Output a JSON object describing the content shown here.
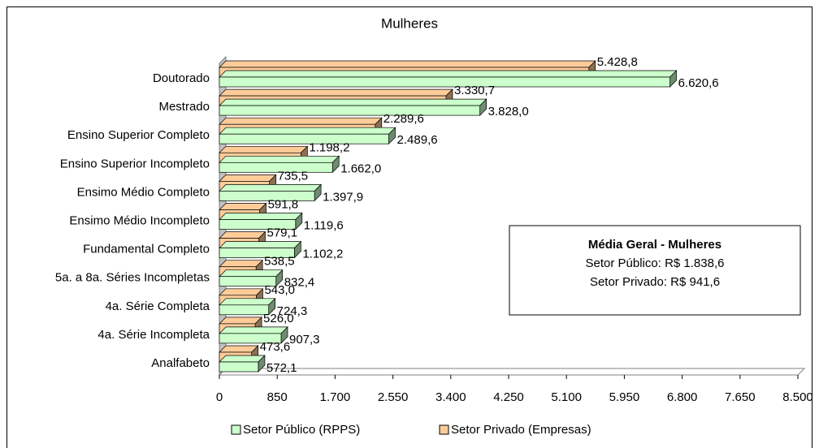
{
  "chart_data": {
    "type": "bar3d_horizontal",
    "title": "Mulheres",
    "categories": [
      "Doutorado",
      "Mestrado",
      "Ensino Superior Completo",
      "Ensino Superior Incompleto",
      "Ensimo Médio Completo",
      "Ensimo Médio Incompleto",
      "Fundamental Completo",
      "5a. a 8a. Séries Incompletas",
      "4a. Série Completa",
      "4a. Série Incompleta",
      "Analfabeto"
    ],
    "series": [
      {
        "name": "Setor Público (RPPS)",
        "color": "#ccffcc",
        "values": [
          6620.6,
          3828.0,
          2489.6,
          1662.0,
          1397.9,
          1119.6,
          1102.2,
          832.4,
          724.3,
          907.3,
          572.1
        ],
        "value_labels": [
          "6.620,6",
          "3.828,0",
          "2.489,6",
          "1.662,0",
          "1.397,9",
          "1.119,6",
          "1.102,2",
          "832,4",
          "724,3",
          "907,3",
          "572,1"
        ]
      },
      {
        "name": "Setor Privado (Empresas)",
        "color": "#ffcc99",
        "values": [
          5428.8,
          3330.7,
          2289.6,
          1198.2,
          735.5,
          591.8,
          579.1,
          538.5,
          543.0,
          526.0,
          473.6
        ],
        "value_labels": [
          "5.428,8",
          "3.330,7",
          "2.289,6",
          "1.198,2",
          "735,5",
          "591,8",
          "579,1",
          "538,5",
          "543,0",
          "526,0",
          "473,6"
        ]
      }
    ],
    "xlim": [
      0,
      8500
    ],
    "xticks": [
      0,
      850,
      {
        "value": 1700,
        "label": "1.700"
      },
      {
        "value": 2550,
        "label": "2.550"
      },
      {
        "value": 3400,
        "label": "3.400"
      },
      {
        "value": 4250,
        "label": "4.250"
      },
      {
        "value": 5100,
        "label": "5.100"
      },
      {
        "value": 5950,
        "label": "5.950"
      },
      {
        "value": 6800,
        "label": "6.800"
      },
      {
        "value": 7650,
        "label": "7.650"
      },
      {
        "value": 8500,
        "label": "8.500"
      }
    ],
    "legend": "bottom",
    "annotation": {
      "title": "Média Geral - Mulheres",
      "lines": [
        "Setor Público: R$ 1.838,6",
        "Setor Privado: R$ 941,6"
      ]
    }
  }
}
